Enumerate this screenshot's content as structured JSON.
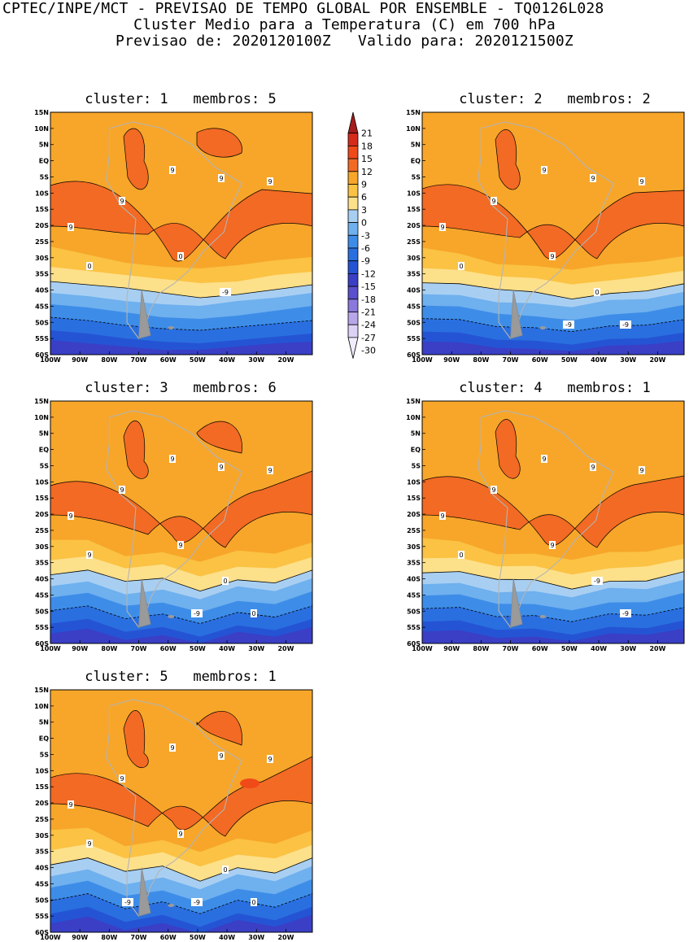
{
  "header": {
    "line1": "CPTEC/INPE/MCT - PREVISAO DE TEMPO GLOBAL POR ENSEMBLE - TQ0126L028",
    "line2": "Cluster Medio para a Temperatura (C) em 700 hPa",
    "line3": "Previsao de: 2020120100Z   Valido para: 2020121500Z"
  },
  "axes": {
    "lat_labels": [
      "15N",
      "10N",
      "5N",
      "EQ",
      "5S",
      "10S",
      "15S",
      "20S",
      "25S",
      "30S",
      "35S",
      "40S",
      "45S",
      "50S",
      "55S",
      "60S"
    ],
    "lon_labels": [
      "100W",
      "90W",
      "80W",
      "70W",
      "60W",
      "50W",
      "40W",
      "30W",
      "20W"
    ]
  },
  "colorbar": {
    "levels": [
      "21",
      "18",
      "15",
      "12",
      "9",
      "6",
      "3",
      "0",
      "-3",
      "-6",
      "-9",
      "-12",
      "-15",
      "-18",
      "-21",
      "-24",
      "-27",
      "-30"
    ],
    "colors": {
      "gt18": "#a51c1c",
      "15_18": "#d62a1a",
      "12_15": "#f04a19",
      "9_12": "#f26a23",
      "6_9": "#f7a62a",
      "3_6": "#fbc243",
      "0_3": "#fde08a",
      "m3_0": "#a8cff2",
      "m6_m3": "#6fb0ee",
      "m9_m6": "#3d8de8",
      "m12_m9": "#2a6fe0",
      "m15_m12": "#2454d4",
      "m18_m15": "#3a3fc6",
      "m21_m18": "#5a4fcc",
      "m24_m21": "#8a78dc",
      "m27_m24": "#b7a7ea",
      "m30_m27": "#dcd2f6",
      "lt_m30": "#f1ecfb"
    }
  },
  "clusters": [
    {
      "title": "cluster: 1   membros: 5",
      "labels": [
        "9",
        "9",
        "9",
        "9",
        "9",
        "0",
        "0",
        "-9"
      ]
    },
    {
      "title": "cluster: 2   membros: 2",
      "labels": [
        "9",
        "9",
        "9",
        "9",
        "9",
        "9",
        "0",
        "0",
        "-9",
        "-9"
      ]
    },
    {
      "title": "cluster: 3   membros: 6",
      "labels": [
        "9",
        "9",
        "9",
        "9",
        "9",
        "9",
        "9",
        "0",
        "0",
        "-9"
      ]
    },
    {
      "title": "cluster: 4   membros: 1",
      "labels": [
        "9",
        "9",
        "9",
        "9",
        "9",
        "9",
        "0",
        "-9",
        "-9"
      ]
    },
    {
      "title": "cluster: 5   membros: 1",
      "labels": [
        "9",
        "9",
        "9",
        "9",
        "9",
        "9",
        "9",
        "0",
        "0",
        "-9",
        "-9"
      ]
    }
  ]
}
